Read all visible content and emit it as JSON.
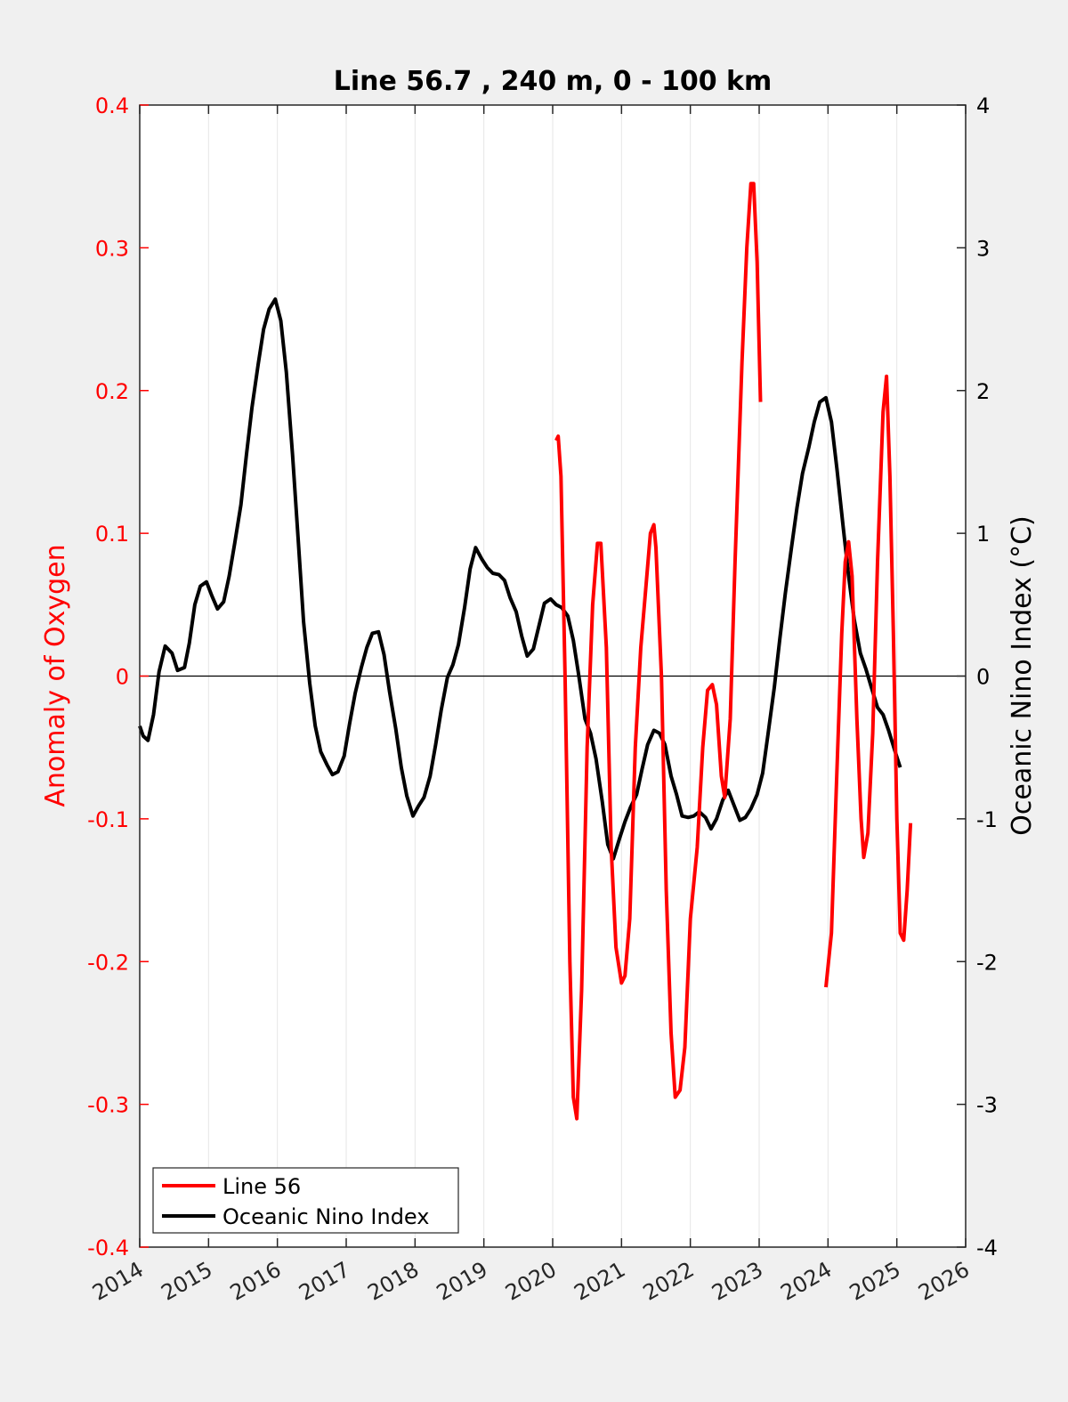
{
  "chart_data": {
    "type": "line",
    "title": "Line 56.7 , 240 m, 0 - 100 km",
    "xlabel": "",
    "xlim": [
      2014,
      2026
    ],
    "xticks": [
      "2014",
      "2015",
      "2016",
      "2017",
      "2018",
      "2019",
      "2020",
      "2021",
      "2022",
      "2023",
      "2024",
      "2025",
      "2026"
    ],
    "y_left": {
      "label": "Anomaly of Oxygen",
      "ylim": [
        -0.4,
        0.4
      ],
      "ticks": [
        "-0.4",
        "-0.3",
        "-0.2",
        "-0.1",
        "0",
        "0.1",
        "0.2",
        "0.3",
        "0.4"
      ],
      "color": "#ff0000"
    },
    "y_right": {
      "label": "Oceanic Nino Index (°C)",
      "ylim": [
        -4,
        4
      ],
      "ticks": [
        "-4",
        "-3",
        "-2",
        "-1",
        "0",
        "1",
        "2",
        "3",
        "4"
      ],
      "color": "#000000"
    },
    "grid": "vertical",
    "legend": "bottom-left",
    "series": [
      {
        "name": "Line 56",
        "axis": "left",
        "color": "#ff0000",
        "segments": [
          [
            [
              2020.05,
              0.165
            ],
            [
              2020.08,
              0.168
            ],
            [
              2020.12,
              0.14
            ],
            [
              2020.18,
              0.0
            ],
            [
              2020.25,
              -0.2
            ],
            [
              2020.3,
              -0.295
            ],
            [
              2020.35,
              -0.31
            ],
            [
              2020.42,
              -0.22
            ],
            [
              2020.5,
              -0.05
            ],
            [
              2020.58,
              0.05
            ],
            [
              2020.65,
              0.093
            ],
            [
              2020.7,
              0.093
            ],
            [
              2020.78,
              0.02
            ],
            [
              2020.85,
              -0.12
            ],
            [
              2020.92,
              -0.19
            ],
            [
              2021.0,
              -0.215
            ],
            [
              2021.05,
              -0.21
            ],
            [
              2021.12,
              -0.17
            ],
            [
              2021.2,
              -0.05
            ],
            [
              2021.28,
              0.02
            ],
            [
              2021.35,
              0.06
            ],
            [
              2021.42,
              0.1
            ],
            [
              2021.47,
              0.106
            ],
            [
              2021.5,
              0.09
            ],
            [
              2021.58,
              0.0
            ],
            [
              2021.65,
              -0.15
            ],
            [
              2021.72,
              -0.25
            ],
            [
              2021.78,
              -0.295
            ],
            [
              2021.85,
              -0.29
            ],
            [
              2021.92,
              -0.26
            ],
            [
              2022.0,
              -0.17
            ],
            [
              2022.1,
              -0.12
            ],
            [
              2022.18,
              -0.05
            ],
            [
              2022.25,
              -0.01
            ],
            [
              2022.32,
              -0.006
            ],
            [
              2022.38,
              -0.02
            ],
            [
              2022.45,
              -0.07
            ],
            [
              2022.5,
              -0.085
            ],
            [
              2022.58,
              -0.03
            ],
            [
              2022.65,
              0.08
            ],
            [
              2022.75,
              0.22
            ],
            [
              2022.82,
              0.3
            ],
            [
              2022.88,
              0.345
            ],
            [
              2022.92,
              0.345
            ],
            [
              2022.97,
              0.29
            ],
            [
              2023.02,
              0.192
            ]
          ],
          [
            [
              2023.97,
              -0.218
            ],
            [
              2024.05,
              -0.18
            ],
            [
              2024.12,
              -0.08
            ],
            [
              2024.2,
              0.03
            ],
            [
              2024.25,
              0.08
            ],
            [
              2024.3,
              0.094
            ],
            [
              2024.35,
              0.07
            ],
            [
              2024.42,
              -0.03
            ],
            [
              2024.48,
              -0.1
            ],
            [
              2024.52,
              -0.127
            ],
            [
              2024.58,
              -0.11
            ],
            [
              2024.65,
              -0.04
            ],
            [
              2024.72,
              0.08
            ],
            [
              2024.8,
              0.185
            ],
            [
              2024.85,
              0.21
            ],
            [
              2024.9,
              0.14
            ],
            [
              2024.95,
              0.03
            ],
            [
              2025.0,
              -0.1
            ],
            [
              2025.05,
              -0.18
            ],
            [
              2025.1,
              -0.185
            ],
            [
              2025.15,
              -0.15
            ],
            [
              2025.2,
              -0.103
            ]
          ]
        ]
      },
      {
        "name": "Oceanic Nino Index",
        "axis": "right",
        "color": "#000000",
        "segments": [
          [
            [
              2014.0,
              -0.35
            ],
            [
              2014.05,
              -0.42
            ],
            [
              2014.12,
              -0.45
            ],
            [
              2014.2,
              -0.27
            ],
            [
              2014.28,
              0.03
            ],
            [
              2014.37,
              0.21
            ],
            [
              2014.47,
              0.16
            ],
            [
              2014.55,
              0.04
            ],
            [
              2014.65,
              0.06
            ],
            [
              2014.72,
              0.23
            ],
            [
              2014.8,
              0.5
            ],
            [
              2014.88,
              0.63
            ],
            [
              2014.97,
              0.66
            ],
            [
              2015.05,
              0.56
            ],
            [
              2015.13,
              0.47
            ],
            [
              2015.22,
              0.52
            ],
            [
              2015.3,
              0.7
            ],
            [
              2015.38,
              0.93
            ],
            [
              2015.47,
              1.2
            ],
            [
              2015.55,
              1.55
            ],
            [
              2015.63,
              1.88
            ],
            [
              2015.72,
              2.18
            ],
            [
              2015.8,
              2.43
            ],
            [
              2015.88,
              2.57
            ],
            [
              2015.97,
              2.64
            ],
            [
              2016.05,
              2.49
            ],
            [
              2016.13,
              2.13
            ],
            [
              2016.22,
              1.55
            ],
            [
              2016.3,
              0.97
            ],
            [
              2016.38,
              0.38
            ],
            [
              2016.47,
              -0.05
            ],
            [
              2016.55,
              -0.35
            ],
            [
              2016.63,
              -0.53
            ],
            [
              2016.72,
              -0.62
            ],
            [
              2016.8,
              -0.69
            ],
            [
              2016.88,
              -0.67
            ],
            [
              2016.97,
              -0.56
            ],
            [
              2017.05,
              -0.33
            ],
            [
              2017.13,
              -0.12
            ],
            [
              2017.22,
              0.06
            ],
            [
              2017.3,
              0.2
            ],
            [
              2017.38,
              0.3
            ],
            [
              2017.47,
              0.31
            ],
            [
              2017.55,
              0.15
            ],
            [
              2017.63,
              -0.11
            ],
            [
              2017.72,
              -0.37
            ],
            [
              2017.8,
              -0.64
            ],
            [
              2017.88,
              -0.84
            ],
            [
              2017.97,
              -0.98
            ],
            [
              2018.05,
              -0.91
            ],
            [
              2018.13,
              -0.85
            ],
            [
              2018.22,
              -0.7
            ],
            [
              2018.3,
              -0.48
            ],
            [
              2018.38,
              -0.24
            ],
            [
              2018.47,
              -0.01
            ],
            [
              2018.55,
              0.08
            ],
            [
              2018.63,
              0.22
            ],
            [
              2018.72,
              0.48
            ],
            [
              2018.8,
              0.75
            ],
            [
              2018.88,
              0.9
            ],
            [
              2018.97,
              0.82
            ],
            [
              2019.05,
              0.76
            ],
            [
              2019.13,
              0.72
            ],
            [
              2019.22,
              0.71
            ],
            [
              2019.3,
              0.67
            ],
            [
              2019.38,
              0.55
            ],
            [
              2019.47,
              0.45
            ],
            [
              2019.55,
              0.28
            ],
            [
              2019.63,
              0.14
            ],
            [
              2019.72,
              0.19
            ],
            [
              2019.8,
              0.35
            ],
            [
              2019.88,
              0.51
            ],
            [
              2019.97,
              0.54
            ],
            [
              2020.05,
              0.5
            ],
            [
              2020.13,
              0.48
            ],
            [
              2020.22,
              0.42
            ],
            [
              2020.3,
              0.25
            ],
            [
              2020.38,
              0.0
            ],
            [
              2020.47,
              -0.3
            ],
            [
              2020.55,
              -0.4
            ],
            [
              2020.63,
              -0.58
            ],
            [
              2020.72,
              -0.88
            ],
            [
              2020.8,
              -1.18
            ],
            [
              2020.88,
              -1.28
            ],
            [
              2020.97,
              -1.14
            ],
            [
              2021.05,
              -1.02
            ],
            [
              2021.13,
              -0.92
            ],
            [
              2021.22,
              -0.83
            ],
            [
              2021.3,
              -0.65
            ],
            [
              2021.38,
              -0.48
            ],
            [
              2021.47,
              -0.38
            ],
            [
              2021.55,
              -0.4
            ],
            [
              2021.63,
              -0.48
            ],
            [
              2021.72,
              -0.7
            ],
            [
              2021.8,
              -0.83
            ],
            [
              2021.88,
              -0.98
            ],
            [
              2021.97,
              -0.99
            ],
            [
              2022.05,
              -0.98
            ],
            [
              2022.13,
              -0.95
            ],
            [
              2022.22,
              -0.99
            ],
            [
              2022.3,
              -1.07
            ],
            [
              2022.38,
              -1.0
            ],
            [
              2022.47,
              -0.87
            ],
            [
              2022.55,
              -0.8
            ],
            [
              2022.63,
              -0.9
            ],
            [
              2022.72,
              -1.01
            ],
            [
              2022.8,
              -0.99
            ],
            [
              2022.88,
              -0.93
            ],
            [
              2022.97,
              -0.83
            ],
            [
              2023.05,
              -0.68
            ],
            [
              2023.13,
              -0.4
            ],
            [
              2023.22,
              -0.08
            ],
            [
              2023.3,
              0.26
            ],
            [
              2023.38,
              0.58
            ],
            [
              2023.47,
              0.9
            ],
            [
              2023.55,
              1.18
            ],
            [
              2023.63,
              1.42
            ],
            [
              2023.72,
              1.6
            ],
            [
              2023.8,
              1.78
            ],
            [
              2023.88,
              1.92
            ],
            [
              2023.97,
              1.95
            ],
            [
              2024.05,
              1.78
            ],
            [
              2024.13,
              1.45
            ],
            [
              2024.22,
              1.05
            ],
            [
              2024.3,
              0.7
            ],
            [
              2024.38,
              0.4
            ],
            [
              2024.47,
              0.16
            ],
            [
              2024.55,
              0.05
            ],
            [
              2024.63,
              -0.08
            ],
            [
              2024.72,
              -0.22
            ],
            [
              2024.8,
              -0.27
            ],
            [
              2024.88,
              -0.38
            ],
            [
              2024.97,
              -0.52
            ],
            [
              2025.05,
              -0.64
            ]
          ]
        ]
      }
    ]
  }
}
